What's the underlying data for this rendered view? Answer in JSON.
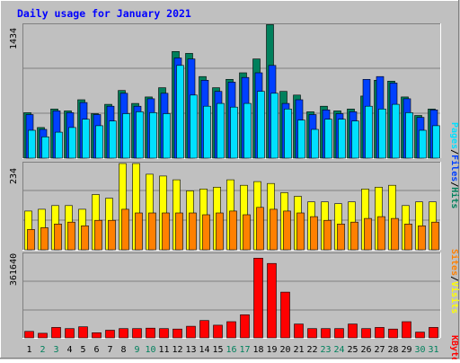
{
  "title": "Daily usage for January 2021",
  "colors": {
    "background": "#C0C0C0",
    "title": "#0000FF",
    "hits": "#00805C",
    "files": "#0040FF",
    "pages": "#00E0FF",
    "visits": "#FFFF00",
    "sites": "#FF8000",
    "kbytes": "#FF0000",
    "weekday_label": "#000000",
    "weekend_label": "#00805C"
  },
  "chart_data": [
    {
      "type": "bar",
      "name": "hits-files-pages",
      "ymax_label": "1434",
      "ylim": [
        0,
        1434
      ],
      "legend": [
        "Pages",
        "/",
        "Files",
        "/",
        "Hits"
      ],
      "categories": [
        "1",
        "2",
        "3",
        "4",
        "5",
        "6",
        "7",
        "8",
        "9",
        "10",
        "11",
        "12",
        "13",
        "14",
        "15",
        "16",
        "17",
        "18",
        "19",
        "20",
        "21",
        "22",
        "23",
        "24",
        "25",
        "26",
        "27",
        "28",
        "29",
        "30",
        "31"
      ],
      "series": [
        {
          "name": "Hits",
          "values": [
            490,
            330,
            530,
            510,
            630,
            480,
            580,
            730,
            590,
            660,
            760,
            1150,
            1130,
            880,
            760,
            850,
            920,
            1070,
            1440,
            720,
            680,
            500,
            560,
            510,
            530,
            670,
            840,
            830,
            660,
            460,
            530
          ]
        },
        {
          "name": "Files",
          "values": [
            470,
            310,
            510,
            490,
            600,
            470,
            560,
            700,
            560,
            640,
            700,
            1080,
            1070,
            840,
            720,
            820,
            870,
            920,
            1000,
            590,
            630,
            470,
            520,
            480,
            500,
            850,
            880,
            810,
            640,
            440,
            520
          ]
        },
        {
          "name": "Pages",
          "values": [
            300,
            230,
            280,
            330,
            420,
            350,
            400,
            480,
            500,
            490,
            480,
            1000,
            680,
            560,
            590,
            550,
            590,
            720,
            700,
            530,
            410,
            310,
            420,
            420,
            400,
            560,
            530,
            580,
            490,
            300,
            350
          ]
        }
      ]
    },
    {
      "type": "bar",
      "name": "visits-sites",
      "ymax_label": "234",
      "ylim": [
        0,
        234
      ],
      "legend": [
        "Sites",
        "/",
        "Visits"
      ],
      "categories": [
        "1",
        "2",
        "3",
        "4",
        "5",
        "6",
        "7",
        "8",
        "9",
        "10",
        "11",
        "12",
        "13",
        "14",
        "15",
        "16",
        "17",
        "18",
        "19",
        "20",
        "21",
        "22",
        "23",
        "24",
        "25",
        "26",
        "27",
        "28",
        "29",
        "30",
        "31"
      ],
      "series": [
        {
          "name": "Visits",
          "values": [
            105,
            110,
            120,
            120,
            110,
            150,
            140,
            234,
            234,
            205,
            200,
            190,
            160,
            165,
            170,
            190,
            175,
            185,
            180,
            155,
            145,
            130,
            130,
            125,
            130,
            165,
            170,
            175,
            120,
            130,
            130
          ]
        },
        {
          "name": "Sites",
          "values": [
            55,
            60,
            70,
            75,
            65,
            80,
            80,
            110,
            100,
            100,
            100,
            100,
            100,
            95,
            100,
            105,
            95,
            115,
            110,
            105,
            100,
            90,
            80,
            70,
            75,
            85,
            90,
            85,
            70,
            65,
            75
          ]
        }
      ]
    },
    {
      "type": "bar",
      "name": "kbytes",
      "ymax_label": "361640",
      "ylim": [
        0,
        361640
      ],
      "legend": [
        "KBytes"
      ],
      "categories": [
        "1",
        "2",
        "3",
        "4",
        "5",
        "6",
        "7",
        "8",
        "9",
        "10",
        "11",
        "12",
        "13",
        "14",
        "15",
        "16",
        "17",
        "18",
        "19",
        "20",
        "21",
        "22",
        "23",
        "24",
        "25",
        "26",
        "27",
        "28",
        "29",
        "30",
        "31"
      ],
      "series": [
        {
          "name": "KBytes",
          "values": [
            28000,
            20000,
            45000,
            40000,
            48000,
            22000,
            33000,
            40000,
            40000,
            42000,
            40000,
            38000,
            50000,
            75000,
            55000,
            70000,
            100000,
            345000,
            322000,
            198000,
            60000,
            40000,
            40000,
            40000,
            60000,
            40000,
            45000,
            38000,
            70000,
            25000,
            45000
          ]
        }
      ]
    }
  ],
  "x_axis": {
    "days": [
      "1",
      "2",
      "3",
      "4",
      "5",
      "6",
      "7",
      "8",
      "9",
      "10",
      "11",
      "12",
      "13",
      "14",
      "15",
      "16",
      "17",
      "18",
      "19",
      "20",
      "21",
      "22",
      "23",
      "24",
      "25",
      "26",
      "27",
      "28",
      "29",
      "30",
      "31"
    ],
    "weekend": [
      false,
      true,
      true,
      false,
      false,
      false,
      false,
      false,
      true,
      true,
      false,
      false,
      false,
      false,
      false,
      true,
      true,
      false,
      false,
      false,
      false,
      false,
      true,
      true,
      false,
      false,
      false,
      false,
      false,
      true,
      true
    ]
  }
}
